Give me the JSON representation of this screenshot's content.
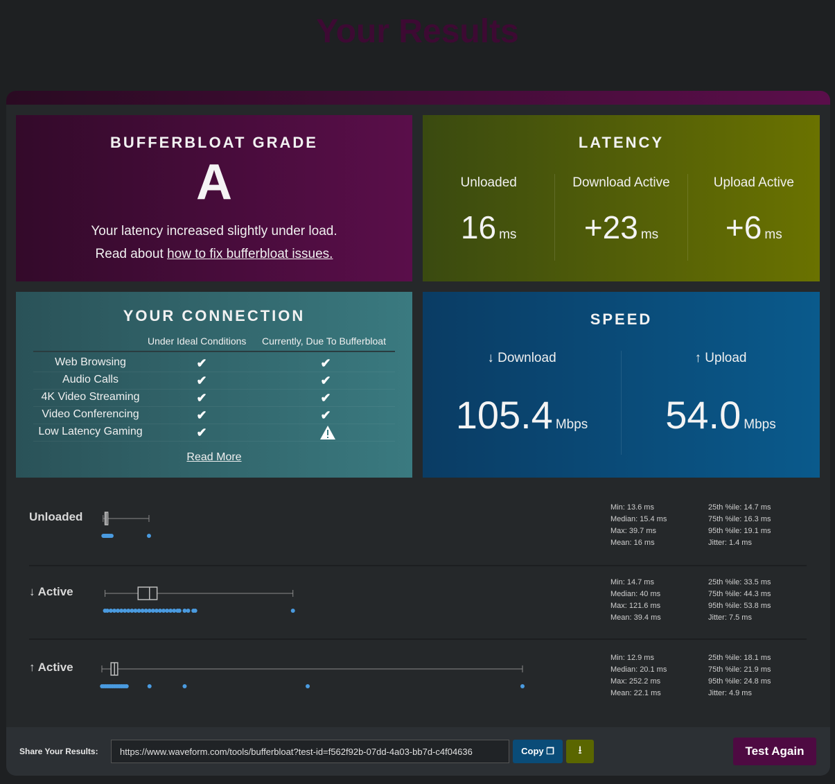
{
  "page_title": "Your Results",
  "grade": {
    "title": "BUFFERBLOAT GRADE",
    "letter": "A",
    "line1": "Your latency increased slightly under load.",
    "line2_prefix": "Read about ",
    "link": "how to fix bufferbloat issues."
  },
  "latency": {
    "title": "LATENCY",
    "cols": [
      {
        "label": "Unloaded",
        "value": "16",
        "unit": "ms"
      },
      {
        "label": "Download Active",
        "value": "+23",
        "unit": "ms"
      },
      {
        "label": "Upload Active",
        "value": "+6",
        "unit": "ms"
      }
    ]
  },
  "connection": {
    "title": "YOUR CONNECTION",
    "col_ideal": "Under Ideal Conditions",
    "col_current": "Currently, Due To Bufferbloat",
    "rows": [
      {
        "name": "Web Browsing",
        "ideal": "check-icon",
        "current": "check-icon"
      },
      {
        "name": "Audio Calls",
        "ideal": "check-icon",
        "current": "check-icon"
      },
      {
        "name": "4K Video Streaming",
        "ideal": "check-icon",
        "current": "check-icon"
      },
      {
        "name": "Video Conferencing",
        "ideal": "check-icon",
        "current": "check-icon"
      },
      {
        "name": "Low Latency Gaming",
        "ideal": "check-icon",
        "current": "warning-icon"
      }
    ],
    "read_more": "Read More"
  },
  "speed": {
    "title": "SPEED",
    "download_label": "↓ Download",
    "download_value": "105.4",
    "upload_label": "↑ Upload",
    "upload_value": "54.0",
    "unit": "Mbps"
  },
  "latency_rows": [
    {
      "name": "Unloaded",
      "box": {
        "min": 13.6,
        "q1": 14.7,
        "median": 15.4,
        "q3": 16.3,
        "max": 39.7
      },
      "points": [
        13.8,
        14.2,
        14.5,
        14.8,
        15.1,
        15.4,
        15.7,
        16.1,
        16.5,
        17.0,
        17.6,
        18.4,
        39.7
      ],
      "stats_left": [
        "Min: 13.6 ms",
        "Median: 15.4 ms",
        "Max: 39.7 ms",
        "Mean: 16 ms"
      ],
      "stats_right": [
        "25th %ile: 14.7 ms",
        "75th %ile: 16.3 ms",
        "95th %ile: 19.1 ms",
        "Jitter: 1.4 ms"
      ]
    },
    {
      "name": "↓ Active",
      "box": {
        "min": 14.7,
        "q1": 33.5,
        "median": 40,
        "q3": 44.3,
        "max": 121.6
      },
      "points": [
        14.7,
        16,
        18,
        20,
        22,
        24,
        26,
        28,
        30,
        32,
        34,
        36,
        38,
        40,
        42,
        44,
        46,
        48,
        50,
        52,
        54,
        56,
        57,
        60,
        62,
        65,
        66,
        121.6
      ],
      "stats_left": [
        "Min: 14.7 ms",
        "Median: 40 ms",
        "Max: 121.6 ms",
        "Mean: 39.4 ms"
      ],
      "stats_right": [
        "25th %ile: 33.5 ms",
        "75th %ile: 44.3 ms",
        "95th %ile: 53.8 ms",
        "Jitter: 7.5 ms"
      ]
    },
    {
      "name": "↑ Active",
      "box": {
        "min": 12.9,
        "q1": 18.1,
        "median": 20.1,
        "q3": 21.9,
        "max": 252.2
      },
      "points": [
        13,
        14,
        15,
        16,
        17,
        18,
        19,
        20,
        21,
        22,
        23,
        24,
        25,
        26,
        27,
        40,
        60,
        130,
        252.2
      ],
      "stats_left": [
        "Min: 12.9 ms",
        "Median: 20.1 ms",
        "Max: 252.2 ms",
        "Mean: 22.1 ms"
      ],
      "stats_right": [
        "25th %ile: 18.1 ms",
        "75th %ile: 21.9 ms",
        "95th %ile: 24.8 ms",
        "Jitter: 4.9 ms"
      ]
    }
  ],
  "share": {
    "label": "Share Your Results:",
    "url": "https://www.waveform.com/tools/bufferbloat?test-id=f562f92b-07dd-4a03-bb7d-c4f04636",
    "copy_label": "Copy",
    "download_icon": "download-icon",
    "copy_icon": "copy-icon",
    "test_again": "Test Again"
  },
  "colors": {
    "grade_bg": "#5a0e4a",
    "latency_bg": "#6a7200",
    "connection_bg": "#3a7a80",
    "speed_bg": "#0a5a8c",
    "point": "#4a9be0"
  }
}
